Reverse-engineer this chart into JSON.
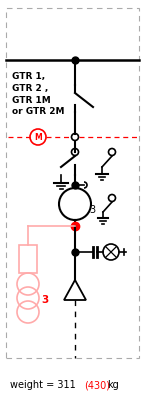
{
  "fig_width": 1.45,
  "fig_height": 4.0,
  "dpi": 100,
  "bg_color": "#ffffff",
  "line_color": "#000000",
  "red_color": "#ff0000",
  "pink_color": "#ffaaaa",
  "label_text": "GTR 1,\nGTR 2 ,\nGTR 1M\nor GTR 2M",
  "label_3_transformer": "3",
  "label_3_ct": "3",
  "weight_black": "weight = 311",
  "weight_red": "(430)",
  "weight_unit": "kg"
}
